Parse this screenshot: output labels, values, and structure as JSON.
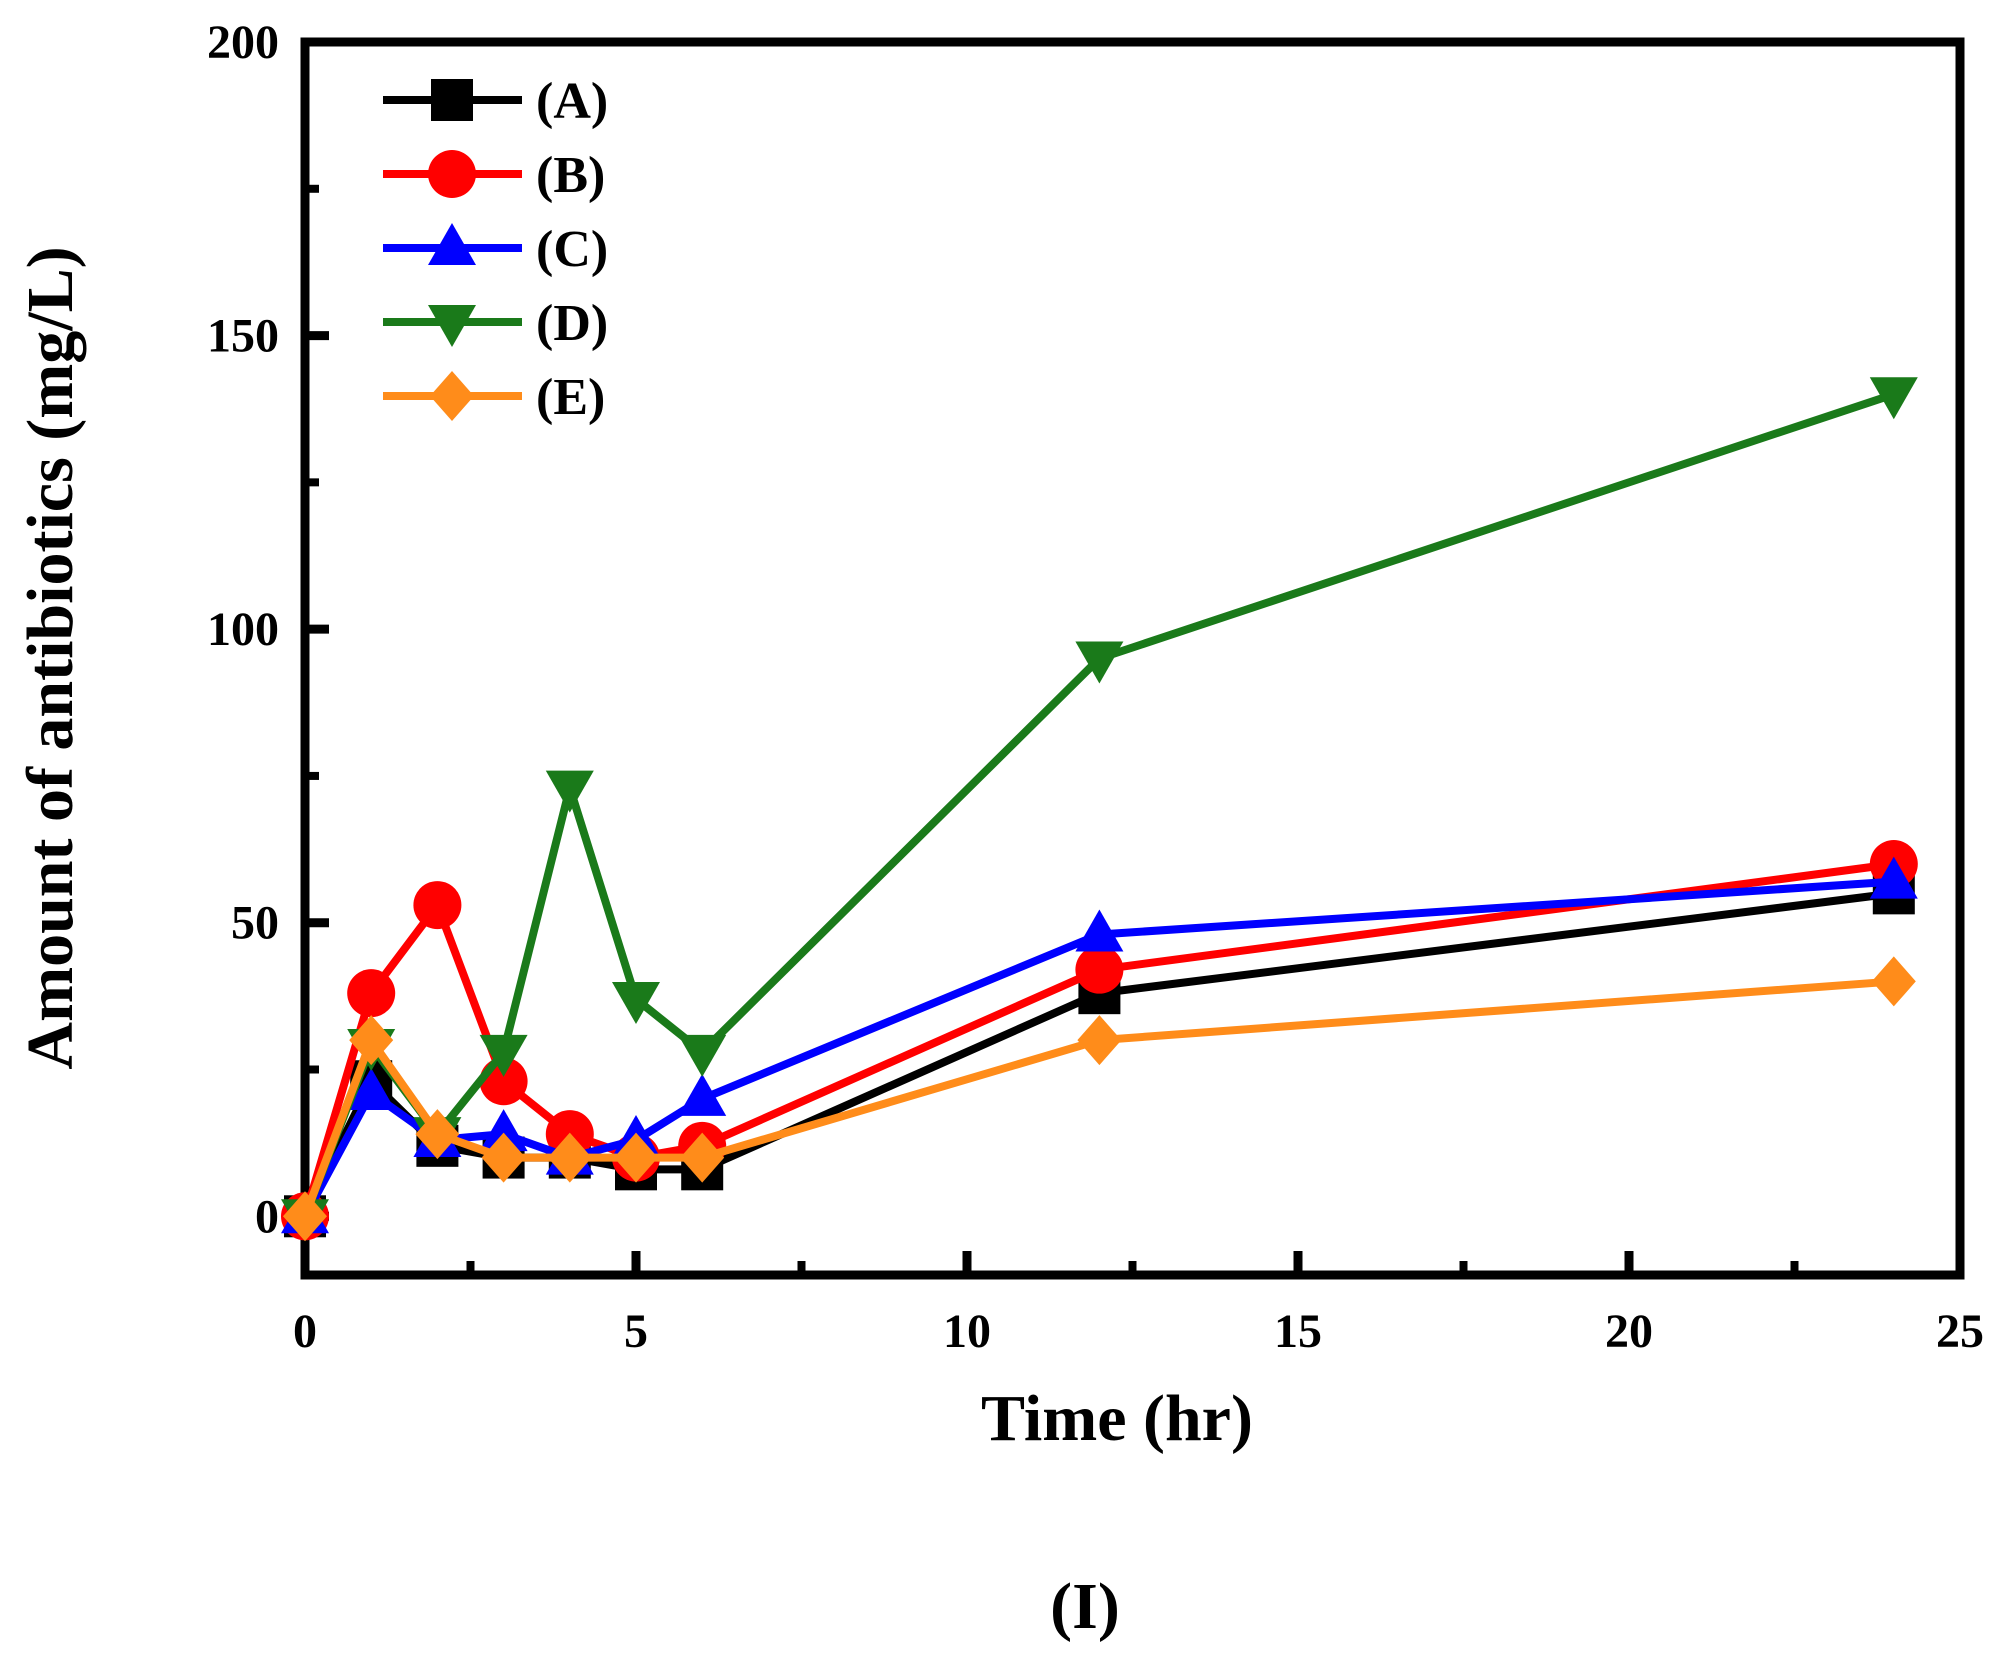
{
  "chart_data": {
    "type": "line",
    "xlabel": "Time (hr)",
    "ylabel": "Amount of antibiotics  (mg/L)",
    "caption": "(I)",
    "xlim": [
      0,
      25
    ],
    "ylim": [
      -10,
      200
    ],
    "x_ticks": [
      0,
      5,
      10,
      15,
      20,
      25
    ],
    "y_ticks": [
      0,
      50,
      100,
      150,
      200
    ],
    "grid": false,
    "legend_position": "top-left",
    "x": [
      0,
      1,
      2,
      3,
      4,
      5,
      6,
      12,
      24
    ],
    "series": [
      {
        "name": "(A)",
        "color": "#000000",
        "marker": "square",
        "values": [
          0,
          23,
          12,
          10,
          10,
          8,
          8,
          38,
          55
        ]
      },
      {
        "name": "(B)",
        "color": "#ff0000",
        "marker": "circle",
        "values": [
          0,
          38,
          53,
          23,
          14,
          10,
          12,
          42,
          60
        ]
      },
      {
        "name": "(C)",
        "color": "#0000ff",
        "marker": "triangle-up",
        "values": [
          0,
          21,
          13,
          14,
          10,
          13,
          20,
          48,
          57
        ]
      },
      {
        "name": "(D)",
        "color": "#1a7a1a",
        "marker": "triangle-down",
        "values": [
          0,
          29,
          14,
          28,
          73,
          37,
          28,
          95,
          140
        ]
      },
      {
        "name": "(E)",
        "color": "#ff8c1a",
        "marker": "diamond",
        "values": [
          0,
          30,
          14,
          10,
          10,
          10,
          10,
          30,
          40
        ]
      }
    ]
  }
}
